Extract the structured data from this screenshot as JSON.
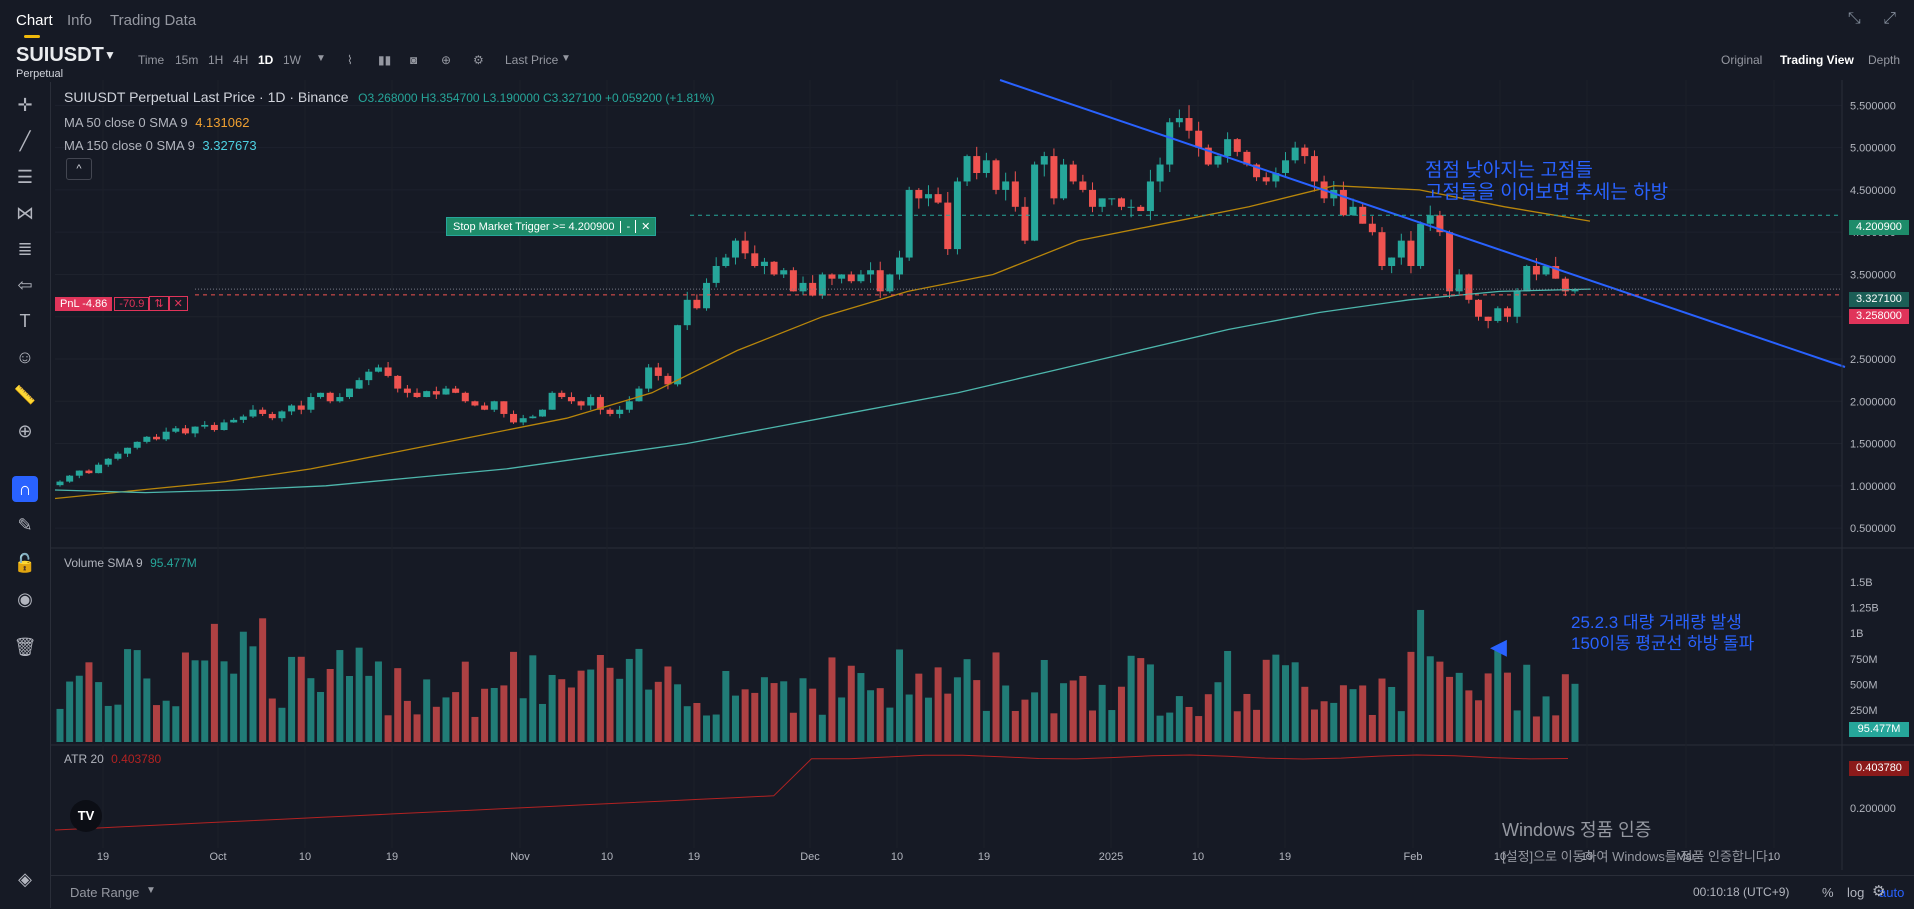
{
  "tabs": [
    {
      "label": "Chart"
    },
    {
      "label": "Info"
    },
    {
      "label": "Trading Data"
    }
  ],
  "symbol": {
    "name": "SUIUSDT",
    "type": "Perpetual"
  },
  "timeframes": [
    "Time",
    "15m",
    "1H",
    "4H",
    "1D",
    "1W"
  ],
  "active_timeframe": "1D",
  "price_type": "Last Price",
  "view_tabs": [
    "Original",
    "Trading View",
    "Depth"
  ],
  "legend": {
    "title": "SUIUSDT Perpetual Last Price · 1D · Binance",
    "ohlc": "O3.268000 H3.354700 L3.190000 C3.327100 +0.059200 (+1.81%)",
    "ma50_label": "MA 50 close 0 SMA 9",
    "ma50_value": "4.131062",
    "ma150_label": "MA 150 close 0 SMA 9",
    "ma150_value": "3.327673"
  },
  "stop_order": {
    "label": "Stop Market Trigger >= 4.200900",
    "price": "4.200900"
  },
  "pnl": {
    "label": "PnL -4.86",
    "qty": "-70.9"
  },
  "price_tags": {
    "ma": "3.327100",
    "entry": "3.258000"
  },
  "annotations": {
    "price_note_1": "점점 낮아지는 고점들",
    "price_note_2": "고점들을 이어보면 추세는 하방",
    "volume_note_1": "25.2.3 대량 거래량 발생",
    "volume_note_2": "150이동 평균선 하방 돌파"
  },
  "volume": {
    "label": "Volume SMA 9",
    "value": "95.477M"
  },
  "atr": {
    "label": "ATR 20",
    "value": "0.403780"
  },
  "watermark": {
    "line1": "Windows 정품 인증",
    "line2": "[설정]으로 이동하여 Windows를 정품 인증합니다."
  },
  "bottom": {
    "date_range": "Date Range",
    "time": "00:10:18 (UTC+9)",
    "percent": "%",
    "log": "log",
    "auto": "auto"
  },
  "colors": {
    "up": "#26a69a",
    "down": "#ef5350",
    "ma50": "#b8860b",
    "ma150": "#4db6ac",
    "trend": "#2962ff",
    "atr": "#b22222",
    "annotation": "#2962ff"
  },
  "chart_data": {
    "type": "candlestick",
    "title": "SUIUSDT Perpetual Last Price · 1D · Binance",
    "y_ticks": [
      "5.500000",
      "5.000000",
      "4.500000",
      "4.000000",
      "3.500000",
      "3.000000",
      "2.500000",
      "2.000000",
      "1.500000",
      "1.000000",
      "0.500000"
    ],
    "x_ticks": [
      "19",
      "Oct",
      "10",
      "19",
      "Nov",
      "10",
      "19",
      "Dec",
      "10",
      "19",
      "2025",
      "10",
      "19",
      "Feb",
      "10",
      "19",
      "Mar",
      "10"
    ],
    "volume_ticks": [
      "1.5B",
      "1.25B",
      "1B",
      "750M",
      "500M",
      "250M"
    ],
    "atr_ticks": [
      "0.200000"
    ],
    "close": [
      1.05,
      1.12,
      1.18,
      1.15,
      1.25,
      1.32,
      1.38,
      1.45,
      1.52,
      1.58,
      1.55,
      1.64,
      1.68,
      1.62,
      1.7,
      1.72,
      1.66,
      1.75,
      1.78,
      1.82,
      1.9,
      1.85,
      1.8,
      1.88,
      1.95,
      1.9,
      2.05,
      2.1,
      2.0,
      2.05,
      2.15,
      2.25,
      2.35,
      2.4,
      2.3,
      2.15,
      2.1,
      2.05,
      2.12,
      2.08,
      2.15,
      2.1,
      2.0,
      1.95,
      1.9,
      2.0,
      1.85,
      1.75,
      1.8,
      1.82,
      1.9,
      2.1,
      2.05,
      2.0,
      1.95,
      2.05,
      1.9,
      1.85,
      1.9,
      2.0,
      2.15,
      2.4,
      2.3,
      2.2,
      2.9,
      3.2,
      3.1,
      3.4,
      3.6,
      3.7,
      3.9,
      3.75,
      3.6,
      3.65,
      3.5,
      3.55,
      3.3,
      3.4,
      3.25,
      3.5,
      3.45,
      3.5,
      3.42,
      3.5,
      3.55,
      3.3,
      3.5,
      3.7,
      4.5,
      4.4,
      4.45,
      4.35,
      3.8,
      4.6,
      4.9,
      4.7,
      4.85,
      4.5,
      4.6,
      4.3,
      3.9,
      4.8,
      4.9,
      4.4,
      4.8,
      4.6,
      4.5,
      4.3,
      4.4,
      4.4,
      4.3,
      4.3,
      4.25,
      4.6,
      4.8,
      5.3,
      5.35,
      5.2,
      5.0,
      4.8,
      4.9,
      5.1,
      4.95,
      4.8,
      4.65,
      4.6,
      4.7,
      4.85,
      5.0,
      4.9,
      4.6,
      4.4,
      4.5,
      4.2,
      4.3,
      4.1,
      4.0,
      3.6,
      3.7,
      3.9,
      3.6,
      4.1,
      4.2,
      4.0,
      3.3,
      3.5,
      3.2,
      3.0,
      2.95,
      3.1,
      3.0,
      3.3,
      3.6,
      3.5,
      3.6,
      3.45,
      3.3,
      3.327
    ],
    "ma50": [
      0.85,
      0.95,
      1.05,
      1.2,
      1.4,
      1.6,
      1.8,
      2.1,
      2.6,
      3.0,
      3.3,
      3.5,
      3.9,
      4.1,
      4.3,
      4.55,
      4.5,
      4.3,
      4.131
    ],
    "ma150": [
      0.95,
      0.92,
      0.95,
      1.0,
      1.1,
      1.2,
      1.35,
      1.5,
      1.7,
      1.9,
      2.1,
      2.35,
      2.6,
      2.85,
      3.05,
      3.2,
      3.3,
      3.327
    ],
    "trendline": {
      "from": [
        "2024-11-25",
        5.9
      ],
      "to": [
        "2025-03-12",
        2.5
      ]
    },
    "horizontal_levels": {
      "stop_trigger": 4.2009,
      "last": 3.3271,
      "entry": 3.258
    },
    "ylim": [
      0.3,
      5.8
    ]
  }
}
